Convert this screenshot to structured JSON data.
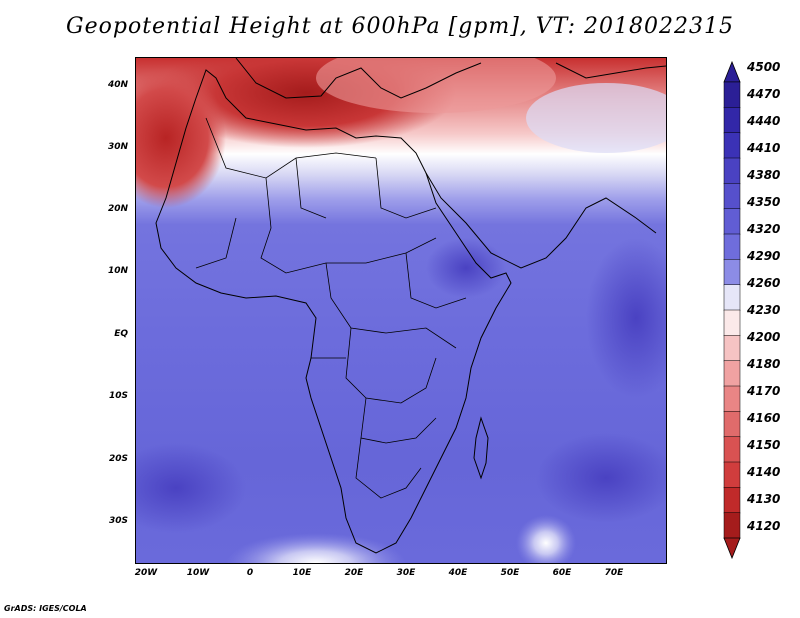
{
  "title": "Geopotential Height at 600hPa [gpm], VT: 2018022315",
  "footer": "GrADS: IGES/COLA",
  "lat_labels": [
    "40N",
    "30N",
    "20N",
    "10N",
    "EQ",
    "10S",
    "20S",
    "30S"
  ],
  "lon_labels": [
    "20W",
    "10W",
    "0",
    "10E",
    "20E",
    "30E",
    "40E",
    "50E",
    "60E",
    "70E"
  ],
  "colorbar": {
    "labels": [
      "4500",
      "4470",
      "4440",
      "4410",
      "4380",
      "4350",
      "4320",
      "4290",
      "4260",
      "4230",
      "4200",
      "4180",
      "4170",
      "4160",
      "4150",
      "4140",
      "4130",
      "4120"
    ],
    "colors": [
      "#2b1f96",
      "#3227a8",
      "#3b32b6",
      "#4a42c2",
      "#5650cc",
      "#615dd4",
      "#6f6ddc",
      "#8c8ce6",
      "#e6e6f8",
      "#fbe9e9",
      "#f6c3c3",
      "#f0a2a2",
      "#e98585",
      "#e06b6b",
      "#d95252",
      "#d03d3d",
      "#c02a2a",
      "#a51c1c"
    ]
  },
  "map": {
    "field_colors": {
      "south_blue": "#6464d8",
      "mid_blue": "#7272de",
      "light_blue": "#9c9ce8",
      "white_band": "#ffffff",
      "pink": "#f7c9c9",
      "red": "#d84848",
      "dark_red": "#a81c1c"
    }
  }
}
